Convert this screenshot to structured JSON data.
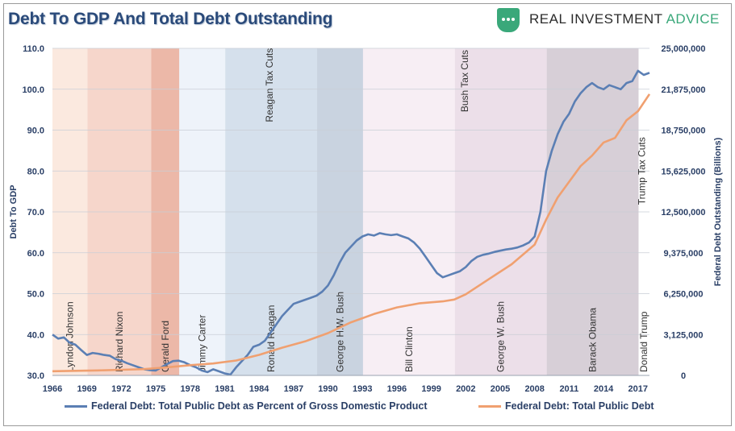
{
  "header": {
    "title": "Debt To GDP And Total Debt Outstanding",
    "brand_main": "REAL INVESTMENT",
    "brand_accent": "ADVICE",
    "brand_icon": "speech-bubble-icon"
  },
  "colors": {
    "title": "#2a4a7a",
    "brand_accent": "#3aa87a",
    "series_debt_to_gdp": "#5b7fb4",
    "series_total_debt": "#f0a070"
  },
  "chart_data": {
    "type": "line",
    "title": "Debt To GDP And Total Debt Outstanding",
    "xlabel": "",
    "ylabel": "Debt To GDP",
    "y2label": "Federal Debt Outstanding (Billions)",
    "xlim": [
      1966,
      2018
    ],
    "ylim": [
      30,
      110
    ],
    "y2lim": [
      0,
      25000000
    ],
    "x_ticks": [
      "1966",
      "1969",
      "1972",
      "1975",
      "1978",
      "1981",
      "1984",
      "1987",
      "1990",
      "1993",
      "1996",
      "1999",
      "2002",
      "2005",
      "2008",
      "2011",
      "2014",
      "2017"
    ],
    "y_ticks": [
      "30.0",
      "40.0",
      "50.0",
      "60.0",
      "70.0",
      "80.0",
      "90.0",
      "100.0",
      "110.0"
    ],
    "y2_ticks": [
      "0",
      "3,125,000",
      "6,250,000",
      "9,375,000",
      "12,500,000",
      "15,625,000",
      "18,750,000",
      "21,875,000",
      "25,000,000"
    ],
    "eras": [
      {
        "name": "Lyndon Johnson",
        "start": 1966.0,
        "end": 1969.05,
        "color": "#fbe9df"
      },
      {
        "name": "Richard Nixon",
        "start": 1969.05,
        "end": 1974.6,
        "color": "#f6d6cb"
      },
      {
        "name": "Gerald Ford",
        "start": 1974.6,
        "end": 1977.05,
        "color": "#ecb8a8"
      },
      {
        "name": "Jimmy Carter",
        "start": 1977.05,
        "end": 1981.05,
        "color": "#eef3fa"
      },
      {
        "name": "Ronald Reagan",
        "start": 1981.05,
        "end": 1989.05,
        "color": "#d5e0ec"
      },
      {
        "name": "George H.W. Bush",
        "start": 1989.05,
        "end": 1993.05,
        "color": "#c9d3e0"
      },
      {
        "name": "Bill Clinton",
        "start": 1993.05,
        "end": 2001.05,
        "color": "#f7eef4"
      },
      {
        "name": "George W. Bush",
        "start": 2001.05,
        "end": 2009.05,
        "color": "#ecdfe9"
      },
      {
        "name": "Barack Obama",
        "start": 2009.05,
        "end": 2017.05,
        "color": "#d7cfd7"
      },
      {
        "name": "Donald Trump",
        "start": 2017.05,
        "end": 2018.0,
        "color": "#ffffff"
      }
    ],
    "annotations": [
      {
        "text": "Reagan Tax Cuts",
        "x": 1985.2,
        "y": 101
      },
      {
        "text": "Bush Tax Cuts",
        "x": 2002.2,
        "y": 102
      },
      {
        "text": "Trump Tax Cuts",
        "x": 2017.6,
        "y": 80
      }
    ],
    "series": [
      {
        "name": "Federal Debt: Total Public Debt as Percent of Gross Domestic Product",
        "axis": "left",
        "color": "#5b7fb4",
        "x": [
          1966.0,
          1966.5,
          1967.0,
          1967.5,
          1968.0,
          1968.5,
          1969.0,
          1969.5,
          1970.0,
          1970.5,
          1971.0,
          1971.5,
          1972.0,
          1972.5,
          1973.0,
          1973.5,
          1974.0,
          1974.5,
          1975.0,
          1975.5,
          1976.0,
          1976.5,
          1977.0,
          1977.5,
          1978.0,
          1978.5,
          1979.0,
          1979.5,
          1980.0,
          1980.5,
          1981.0,
          1981.5,
          1982.0,
          1982.5,
          1983.0,
          1983.5,
          1984.0,
          1984.5,
          1985.0,
          1985.5,
          1986.0,
          1986.5,
          1987.0,
          1987.5,
          1988.0,
          1988.5,
          1989.0,
          1989.5,
          1990.0,
          1990.5,
          1991.0,
          1991.5,
          1992.0,
          1992.5,
          1993.0,
          1993.5,
          1994.0,
          1994.5,
          1995.0,
          1995.5,
          1996.0,
          1996.5,
          1997.0,
          1997.5,
          1998.0,
          1998.5,
          1999.0,
          1999.5,
          2000.0,
          2000.5,
          2001.0,
          2001.5,
          2002.0,
          2002.5,
          2003.0,
          2003.5,
          2004.0,
          2004.5,
          2005.0,
          2005.5,
          2006.0,
          2006.5,
          2007.0,
          2007.5,
          2008.0,
          2008.5,
          2009.0,
          2009.5,
          2010.0,
          2010.5,
          2011.0,
          2011.5,
          2012.0,
          2012.5,
          2013.0,
          2013.5,
          2014.0,
          2014.5,
          2015.0,
          2015.5,
          2016.0,
          2016.5,
          2017.0,
          2017.5,
          2018.0
        ],
        "values": [
          40.0,
          39.0,
          39.3,
          38.0,
          37.5,
          36.2,
          35.0,
          35.5,
          35.3,
          35.0,
          34.8,
          34.0,
          33.6,
          33.0,
          32.5,
          32.0,
          31.5,
          31.3,
          31.2,
          32.0,
          32.8,
          33.5,
          33.6,
          33.2,
          32.5,
          32.0,
          31.2,
          30.8,
          31.5,
          31.0,
          30.5,
          30.2,
          32.0,
          33.5,
          35.0,
          37.0,
          37.5,
          38.5,
          40.5,
          42.5,
          44.5,
          46.0,
          47.5,
          48.0,
          48.5,
          49.0,
          49.5,
          50.5,
          52.0,
          54.5,
          57.5,
          60.0,
          61.5,
          63.0,
          64.0,
          64.5,
          64.2,
          64.8,
          64.5,
          64.3,
          64.5,
          64.0,
          63.5,
          62.5,
          61.0,
          59.0,
          57.0,
          55.0,
          54.0,
          54.5,
          55.0,
          55.5,
          56.5,
          58.0,
          59.0,
          59.5,
          59.8,
          60.2,
          60.5,
          60.8,
          61.0,
          61.3,
          61.8,
          62.5,
          64.0,
          70.0,
          80.0,
          85.0,
          89.0,
          92.0,
          94.0,
          97.0,
          99.0,
          100.5,
          101.5,
          100.5,
          100.0,
          101.0,
          100.5,
          100.0,
          101.5,
          102.0,
          104.5,
          103.5,
          104.0
        ]
      },
      {
        "name": "Federal Debt: Total Public Debt",
        "axis": "right",
        "color": "#f0a070",
        "x": [
          1966.0,
          1968.0,
          1970.0,
          1972.0,
          1974.0,
          1976.0,
          1978.0,
          1980.0,
          1982.0,
          1984.0,
          1986.0,
          1988.0,
          1990.0,
          1992.0,
          1994.0,
          1996.0,
          1998.0,
          2000.0,
          2001.0,
          2002.0,
          2004.0,
          2006.0,
          2008.0,
          2009.0,
          2010.0,
          2011.0,
          2012.0,
          2013.0,
          2014.0,
          2015.0,
          2016.0,
          2017.0,
          2018.0
        ],
        "values": [
          320000,
          350000,
          380000,
          430000,
          480000,
          620000,
          780000,
          910000,
          1140000,
          1570000,
          2120000,
          2600000,
          3230000,
          4060000,
          4690000,
          5200000,
          5520000,
          5660000,
          5800000,
          6200000,
          7350000,
          8500000,
          10000000,
          11900000,
          13600000,
          14800000,
          16000000,
          16800000,
          17800000,
          18150000,
          19500000,
          20200000,
          21500000
        ]
      }
    ]
  },
  "legend": [
    {
      "label": "Federal Debt: Total Public Debt as Percent of Gross Domestic Product",
      "color": "#5b7fb4"
    },
    {
      "label": "Federal Debt: Total Public Debt",
      "color": "#f0a070"
    }
  ]
}
